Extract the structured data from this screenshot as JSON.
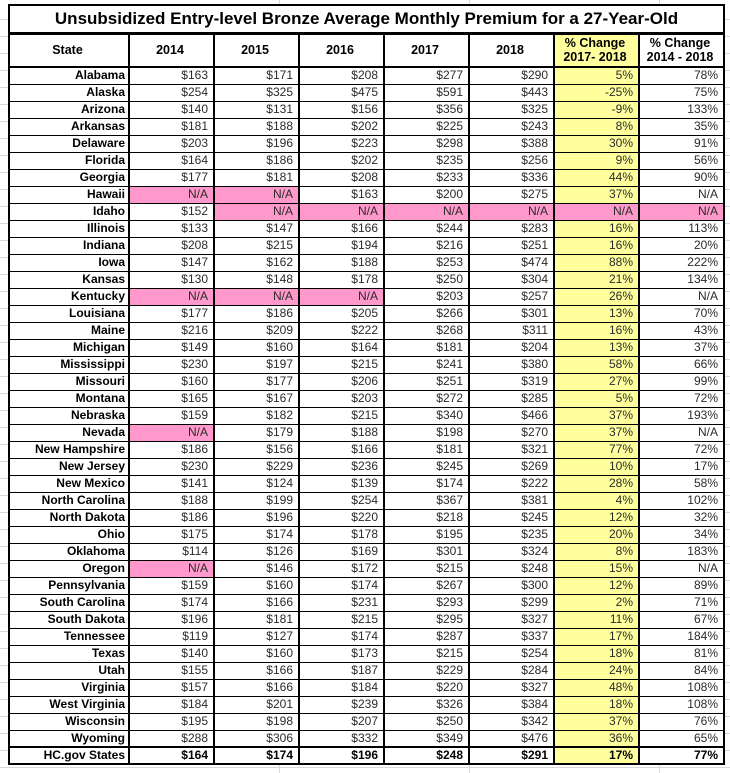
{
  "colors": {
    "highlight_yellow": "#FFFF9E",
    "na_pink": "#FF99CC",
    "border": "#000000",
    "text": "#000000"
  },
  "chart_data": {
    "type": "table",
    "title": "Unsubsidized Entry-level Bronze Average Monthly Premium for a 27-Year-Old",
    "header": {
      "state": "State",
      "years": [
        "2014",
        "2015",
        "2016",
        "2017",
        "2018"
      ],
      "pct_2017_2018": {
        "line1": "% Change",
        "line2": "2017- 2018"
      },
      "pct_2014_2018": {
        "line1": "% Change",
        "line2": "2014 - 2018"
      }
    },
    "rows": [
      {
        "state": "Alabama",
        "values": [
          "$163",
          "$171",
          "$208",
          "$277",
          "$290",
          "5%",
          "78%"
        ],
        "pink_cols": []
      },
      {
        "state": "Alaska",
        "values": [
          "$254",
          "$325",
          "$475",
          "$591",
          "$443",
          "-25%",
          "75%"
        ],
        "pink_cols": []
      },
      {
        "state": "Arizona",
        "values": [
          "$140",
          "$131",
          "$156",
          "$356",
          "$325",
          "-9%",
          "133%"
        ],
        "pink_cols": []
      },
      {
        "state": "Arkansas",
        "values": [
          "$181",
          "$188",
          "$202",
          "$225",
          "$243",
          "8%",
          "35%"
        ],
        "pink_cols": []
      },
      {
        "state": "Delaware",
        "values": [
          "$203",
          "$196",
          "$223",
          "$298",
          "$388",
          "30%",
          "91%"
        ],
        "pink_cols": []
      },
      {
        "state": "Florida",
        "values": [
          "$164",
          "$186",
          "$202",
          "$235",
          "$256",
          "9%",
          "56%"
        ],
        "pink_cols": []
      },
      {
        "state": "Georgia",
        "values": [
          "$177",
          "$181",
          "$208",
          "$233",
          "$336",
          "44%",
          "90%"
        ],
        "pink_cols": []
      },
      {
        "state": "Hawaii",
        "values": [
          "N/A",
          "N/A",
          "$163",
          "$200",
          "$275",
          "37%",
          "N/A"
        ],
        "pink_cols": [
          0,
          1
        ]
      },
      {
        "state": "Idaho",
        "values": [
          "$152",
          "N/A",
          "N/A",
          "N/A",
          "N/A",
          "N/A",
          "N/A"
        ],
        "pink_cols": [
          1,
          2,
          3,
          4,
          5,
          6
        ]
      },
      {
        "state": "Illinois",
        "values": [
          "$133",
          "$147",
          "$166",
          "$244",
          "$283",
          "16%",
          "113%"
        ],
        "pink_cols": []
      },
      {
        "state": "Indiana",
        "values": [
          "$208",
          "$215",
          "$194",
          "$216",
          "$251",
          "16%",
          "20%"
        ],
        "pink_cols": []
      },
      {
        "state": "Iowa",
        "values": [
          "$147",
          "$162",
          "$188",
          "$253",
          "$474",
          "88%",
          "222%"
        ],
        "pink_cols": []
      },
      {
        "state": "Kansas",
        "values": [
          "$130",
          "$148",
          "$178",
          "$250",
          "$304",
          "21%",
          "134%"
        ],
        "pink_cols": []
      },
      {
        "state": "Kentucky",
        "values": [
          "N/A",
          "N/A",
          "N/A",
          "$203",
          "$257",
          "26%",
          "N/A"
        ],
        "pink_cols": [
          0,
          1,
          2
        ]
      },
      {
        "state": "Louisiana",
        "values": [
          "$177",
          "$186",
          "$205",
          "$266",
          "$301",
          "13%",
          "70%"
        ],
        "pink_cols": []
      },
      {
        "state": "Maine",
        "values": [
          "$216",
          "$209",
          "$222",
          "$268",
          "$311",
          "16%",
          "43%"
        ],
        "pink_cols": []
      },
      {
        "state": "Michigan",
        "values": [
          "$149",
          "$160",
          "$164",
          "$181",
          "$204",
          "13%",
          "37%"
        ],
        "pink_cols": []
      },
      {
        "state": "Mississippi",
        "values": [
          "$230",
          "$197",
          "$215",
          "$241",
          "$380",
          "58%",
          "66%"
        ],
        "pink_cols": []
      },
      {
        "state": "Missouri",
        "values": [
          "$160",
          "$177",
          "$206",
          "$251",
          "$319",
          "27%",
          "99%"
        ],
        "pink_cols": []
      },
      {
        "state": "Montana",
        "values": [
          "$165",
          "$167",
          "$203",
          "$272",
          "$285",
          "5%",
          "72%"
        ],
        "pink_cols": []
      },
      {
        "state": "Nebraska",
        "values": [
          "$159",
          "$182",
          "$215",
          "$340",
          "$466",
          "37%",
          "193%"
        ],
        "pink_cols": []
      },
      {
        "state": "Nevada",
        "values": [
          "N/A",
          "$179",
          "$188",
          "$198",
          "$270",
          "37%",
          "N/A"
        ],
        "pink_cols": [
          0
        ]
      },
      {
        "state": "New Hampshire",
        "values": [
          "$186",
          "$156",
          "$166",
          "$181",
          "$321",
          "77%",
          "72%"
        ],
        "pink_cols": []
      },
      {
        "state": "New Jersey",
        "values": [
          "$230",
          "$229",
          "$236",
          "$245",
          "$269",
          "10%",
          "17%"
        ],
        "pink_cols": []
      },
      {
        "state": "New Mexico",
        "values": [
          "$141",
          "$124",
          "$139",
          "$174",
          "$222",
          "28%",
          "58%"
        ],
        "pink_cols": []
      },
      {
        "state": "North Carolina",
        "values": [
          "$188",
          "$199",
          "$254",
          "$367",
          "$381",
          "4%",
          "102%"
        ],
        "pink_cols": []
      },
      {
        "state": "North Dakota",
        "values": [
          "$186",
          "$196",
          "$220",
          "$218",
          "$245",
          "12%",
          "32%"
        ],
        "pink_cols": []
      },
      {
        "state": "Ohio",
        "values": [
          "$175",
          "$174",
          "$178",
          "$195",
          "$235",
          "20%",
          "34%"
        ],
        "pink_cols": []
      },
      {
        "state": "Oklahoma",
        "values": [
          "$114",
          "$126",
          "$169",
          "$301",
          "$324",
          "8%",
          "183%"
        ],
        "pink_cols": []
      },
      {
        "state": "Oregon",
        "values": [
          "N/A",
          "$146",
          "$172",
          "$215",
          "$248",
          "15%",
          "N/A"
        ],
        "pink_cols": [
          0
        ]
      },
      {
        "state": "Pennsylvania",
        "values": [
          "$159",
          "$160",
          "$174",
          "$267",
          "$300",
          "12%",
          "89%"
        ],
        "pink_cols": []
      },
      {
        "state": "South Carolina",
        "values": [
          "$174",
          "$166",
          "$231",
          "$293",
          "$299",
          "2%",
          "71%"
        ],
        "pink_cols": []
      },
      {
        "state": "South Dakota",
        "values": [
          "$196",
          "$181",
          "$215",
          "$295",
          "$327",
          "11%",
          "67%"
        ],
        "pink_cols": []
      },
      {
        "state": "Tennessee",
        "values": [
          "$119",
          "$127",
          "$174",
          "$287",
          "$337",
          "17%",
          "184%"
        ],
        "pink_cols": []
      },
      {
        "state": "Texas",
        "values": [
          "$140",
          "$160",
          "$173",
          "$215",
          "$254",
          "18%",
          "81%"
        ],
        "pink_cols": []
      },
      {
        "state": "Utah",
        "values": [
          "$155",
          "$166",
          "$187",
          "$229",
          "$284",
          "24%",
          "84%"
        ],
        "pink_cols": []
      },
      {
        "state": "Virginia",
        "values": [
          "$157",
          "$166",
          "$184",
          "$220",
          "$327",
          "48%",
          "108%"
        ],
        "pink_cols": []
      },
      {
        "state": "West Virginia",
        "values": [
          "$184",
          "$201",
          "$239",
          "$326",
          "$384",
          "18%",
          "108%"
        ],
        "pink_cols": []
      },
      {
        "state": "Wisconsin",
        "values": [
          "$195",
          "$198",
          "$207",
          "$250",
          "$342",
          "37%",
          "76%"
        ],
        "pink_cols": []
      },
      {
        "state": "Wyoming",
        "values": [
          "$288",
          "$306",
          "$332",
          "$349",
          "$476",
          "36%",
          "65%"
        ],
        "pink_cols": []
      }
    ],
    "total_row": {
      "state": "HC.gov States",
      "values": [
        "$164",
        "$174",
        "$196",
        "$248",
        "$291",
        "17%",
        "77%"
      ],
      "pink_cols": []
    }
  }
}
